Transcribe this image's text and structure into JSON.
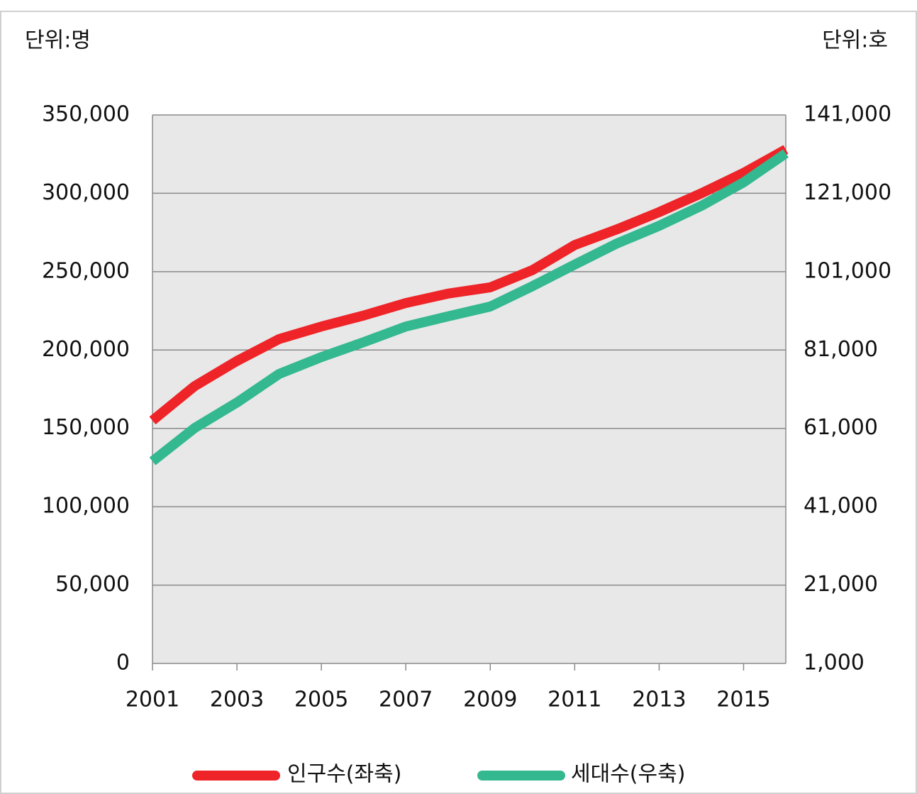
{
  "chart_data": {
    "type": "line",
    "ylabel": "단위:명",
    "y2label": "단위:호",
    "x": [
      2001,
      2002,
      2003,
      2004,
      2005,
      2006,
      2007,
      2008,
      2009,
      2010,
      2011,
      2012,
      2013,
      2014,
      2015,
      2016
    ],
    "xlim": [
      2001,
      2016
    ],
    "xticks": [
      2001,
      2003,
      2005,
      2007,
      2009,
      2011,
      2013,
      2015
    ],
    "ylim": [
      0,
      350000
    ],
    "yticks": [
      0,
      {
        "value": 50000,
        "label": "50,000"
      },
      {
        "value": 100000,
        "label": "100,000"
      },
      {
        "value": 150000,
        "label": "150,000"
      },
      {
        "value": 200000,
        "label": "200,000"
      },
      {
        "value": 250000,
        "label": "250,000"
      },
      {
        "value": 300000,
        "label": "300,000"
      },
      {
        "value": 350000,
        "label": "350,000"
      }
    ],
    "y2lim": [
      1000,
      141000
    ],
    "y2ticks": [
      {
        "value": 1000,
        "label": "1,000"
      },
      {
        "value": 21000,
        "label": "21,000"
      },
      {
        "value": 41000,
        "label": "41,000"
      },
      {
        "value": 61000,
        "label": "61,000"
      },
      {
        "value": 81000,
        "label": "81,000"
      },
      {
        "value": 101000,
        "label": "101,000"
      },
      {
        "value": 121000,
        "label": "121,000"
      },
      {
        "value": 141000,
        "label": "141,000"
      }
    ],
    "grid": true,
    "series": [
      {
        "name": "인구수(좌축)",
        "color": "#ee2428",
        "values": [
          155000,
          177000,
          193000,
          207000,
          215000,
          222000,
          230000,
          236000,
          240000,
          251000,
          267000,
          277000,
          288000,
          300000,
          313000,
          328000
        ]
      },
      {
        "name": "세대수(우축)",
        "color": "#33b88f",
        "axis": "y2",
        "values": [
          52600,
          61100,
          67600,
          74900,
          79200,
          83000,
          87000,
          89600,
          92100,
          97300,
          102800,
          108200,
          112700,
          117800,
          123800,
          131200
        ]
      }
    ]
  }
}
